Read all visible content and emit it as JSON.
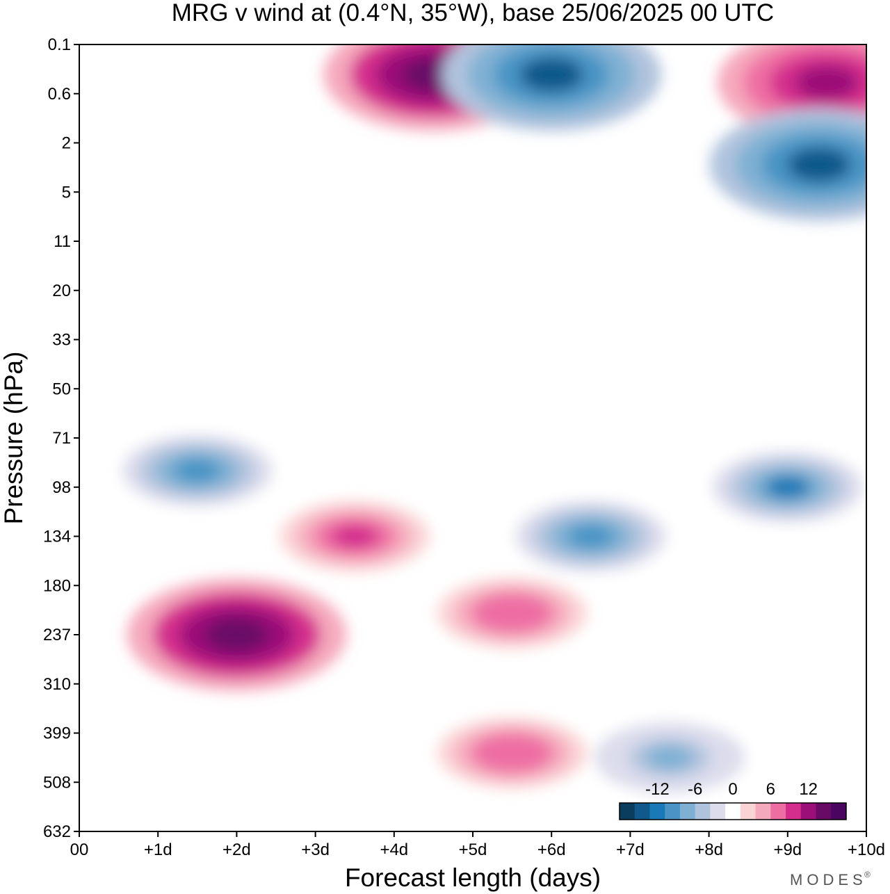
{
  "chart_data": {
    "type": "heatmap",
    "title": "MRG v wind at (0.4°N, 35°W),  base 25/06/2025  00 UTC",
    "xlabel": "Forecast length (days)",
    "ylabel": "Pressure (hPa)",
    "x_ticks": [
      "00",
      "+1d",
      "+2d",
      "+3d",
      "+4d",
      "+5d",
      "+6d",
      "+7d",
      "+8d",
      "+9d",
      "+10d"
    ],
    "y_ticks": [
      "0.1",
      "0.6",
      "2",
      "5",
      "11",
      "20",
      "33",
      "50",
      "71",
      "98",
      "134",
      "180",
      "237",
      "310",
      "399",
      "508",
      "632"
    ],
    "xlim": [
      0,
      10
    ],
    "ylim_hPa": [
      632,
      0.1
    ],
    "colorbar": {
      "ticks": [
        "-12",
        "-6",
        "0",
        "6",
        "12"
      ],
      "levels": [
        -15,
        -12,
        -10,
        -8,
        -6,
        -4,
        -2,
        2,
        4,
        6,
        8,
        10,
        12,
        15
      ],
      "colors": [
        "#0b3e5e",
        "#10598a",
        "#1a7ab7",
        "#4a94c5",
        "#7fb0d3",
        "#b0c3dd",
        "#dcdcec",
        "#ffffff",
        "#fad4d4",
        "#f5a9bd",
        "#ee6ea3",
        "#d42d8d",
        "#9b0f78",
        "#6a0a67",
        "#4a0561"
      ]
    },
    "features": [
      {
        "label": "positive maximum",
        "day": 2.0,
        "pressure_hPa": 237,
        "v_ms": 15
      },
      {
        "label": "positive maximum",
        "day": 4.5,
        "pressure_hPa": 0.3,
        "v_ms": 15
      },
      {
        "label": "positive band",
        "day": 3.5,
        "pressure_hPa": 134,
        "v_ms": 10
      },
      {
        "label": "positive band",
        "day": 5.5,
        "pressure_hPa": 210,
        "v_ms": 8
      },
      {
        "label": "positive band",
        "day": 5.5,
        "pressure_hPa": 440,
        "v_ms": 8
      },
      {
        "label": "positive cell",
        "day": 9.5,
        "pressure_hPa": 0.4,
        "v_ms": 12
      },
      {
        "label": "negative cell",
        "day": 1.5,
        "pressure_hPa": 88,
        "v_ms": -8
      },
      {
        "label": "negative cell",
        "day": 6.5,
        "pressure_hPa": 134,
        "v_ms": -8
      },
      {
        "label": "negative cell",
        "day": 9.0,
        "pressure_hPa": 98,
        "v_ms": -10
      },
      {
        "label": "negative cell",
        "day": 9.4,
        "pressure_hPa": 3,
        "v_ms": -12
      },
      {
        "label": "negative cell",
        "day": 6.0,
        "pressure_hPa": 0.3,
        "v_ms": -12
      },
      {
        "label": "negative band",
        "day": 7.5,
        "pressure_hPa": 450,
        "v_ms": -6
      }
    ]
  },
  "brand": {
    "logo_text": "MODES",
    "logo_mark": "®"
  }
}
